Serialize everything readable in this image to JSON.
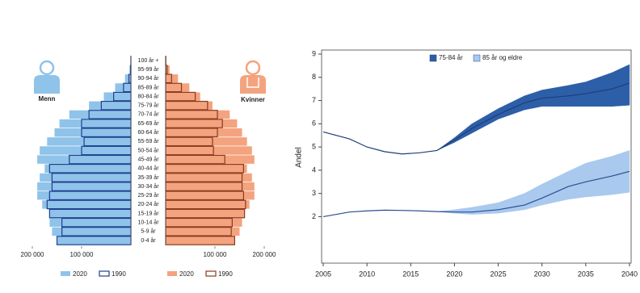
{
  "chart_data": [
    {
      "type": "pyramid",
      "categories": [
        "0-4 år",
        "5-9 år",
        "10-14 år",
        "15-19 år",
        "20-24 år",
        "25-29 år",
        "30-34 år",
        "35-39 år",
        "40-44 år",
        "45-49 år",
        "50-54 år",
        "55-59 år",
        "60-64 år",
        "65-69 år",
        "70-74 år",
        "75-79 år",
        "80-84 år",
        "85-89 år",
        "90-94 år",
        "95-99 år",
        "100 år +"
      ],
      "xlim": [
        0,
        200000
      ],
      "xticks": [
        {
          "value": 100000,
          "label": "100 000"
        },
        {
          "value": 200000,
          "label": "200 000"
        }
      ],
      "groups": [
        {
          "label": "Menn",
          "series": [
            {
              "name": "2020",
              "color": "#8fc3ea",
              "style": "fill",
              "values": [
                150000,
                160000,
                165000,
                165000,
                180000,
                190000,
                190000,
                185000,
                175000,
                190000,
                185000,
                170000,
                155000,
                145000,
                125000,
                85000,
                55000,
                32000,
                12000,
                3000,
                300
              ]
            },
            {
              "name": "1990",
              "color": "#1f3f8f",
              "style": "outline",
              "values": [
                150000,
                140000,
                140000,
                165000,
                170000,
                165000,
                160000,
                160000,
                165000,
                125000,
                100000,
                95000,
                100000,
                100000,
                85000,
                60000,
                35000,
                15000,
                4000,
                700,
                100
              ]
            }
          ]
        },
        {
          "label": "Kvinner",
          "series": [
            {
              "name": "2020",
              "color": "#f4a37f",
              "style": "fill",
              "values": [
                140000,
                150000,
                155000,
                160000,
                170000,
                180000,
                180000,
                175000,
                165000,
                180000,
                175000,
                165000,
                155000,
                145000,
                130000,
                95000,
                70000,
                48000,
                25000,
                8000,
                1000
              ]
            },
            {
              "name": "1990",
              "color": "#8b3a1f",
              "style": "outline",
              "values": [
                140000,
                133000,
                135000,
                160000,
                162000,
                158000,
                155000,
                155000,
                158000,
                120000,
                97000,
                95000,
                105000,
                115000,
                105000,
                85000,
                60000,
                32000,
                12000,
                3000,
                400
              ]
            }
          ]
        }
      ]
    },
    {
      "type": "band-line",
      "ylabel": "Andel",
      "x": [
        2005,
        2008,
        2010,
        2012,
        2014,
        2016,
        2018,
        2020,
        2022,
        2025,
        2028,
        2030,
        2033,
        2035,
        2038,
        2040
      ],
      "xlim": [
        2005,
        2040
      ],
      "ylim": [
        0,
        9
      ],
      "xticks": [
        2005,
        2010,
        2015,
        2020,
        2025,
        2030,
        2035,
        2040
      ],
      "yticks": [
        2,
        3,
        4,
        5,
        6,
        7,
        8,
        9
      ],
      "legend": "top",
      "series": [
        {
          "name": "75-84 år",
          "color": "#2d5fa8",
          "line_color": "#1f3d7a",
          "values": [
            5.65,
            5.35,
            5.0,
            4.8,
            4.7,
            4.75,
            4.85,
            5.3,
            5.8,
            6.4,
            6.9,
            7.1,
            7.2,
            7.3,
            7.5,
            7.75
          ],
          "low": [
            null,
            null,
            null,
            null,
            null,
            null,
            4.85,
            5.2,
            5.6,
            6.2,
            6.6,
            6.75,
            6.75,
            6.75,
            6.75,
            6.8
          ],
          "high": [
            null,
            null,
            null,
            null,
            null,
            null,
            4.85,
            5.4,
            6.0,
            6.65,
            7.2,
            7.45,
            7.65,
            7.8,
            8.2,
            8.55
          ]
        },
        {
          "name": "85 år og eldre",
          "color": "#a9c9ee",
          "line_color": "#2a4f90",
          "values": [
            2.0,
            2.2,
            2.25,
            2.28,
            2.27,
            2.25,
            2.22,
            2.2,
            2.2,
            2.3,
            2.5,
            2.8,
            3.3,
            3.5,
            3.75,
            3.95
          ],
          "low": [
            null,
            null,
            null,
            null,
            null,
            null,
            2.22,
            2.15,
            2.1,
            2.15,
            2.3,
            2.5,
            2.75,
            2.85,
            2.95,
            3.05
          ],
          "high": [
            null,
            null,
            null,
            null,
            null,
            null,
            2.22,
            2.3,
            2.4,
            2.6,
            3.0,
            3.4,
            3.95,
            4.3,
            4.6,
            4.85
          ]
        }
      ]
    }
  ]
}
